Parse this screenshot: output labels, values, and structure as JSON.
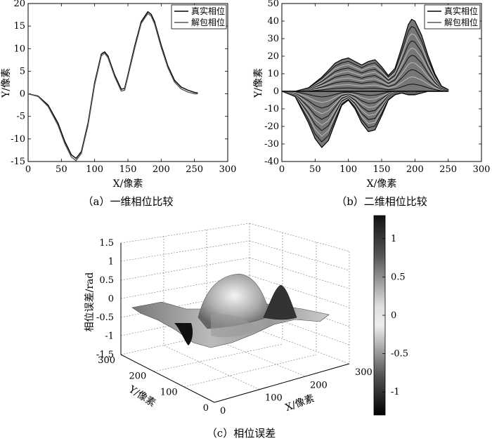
{
  "chart_data": [
    {
      "id": "a",
      "type": "line",
      "caption": "（a）一维相位比较",
      "xlabel": "X/像素",
      "ylabel": "Y/像素",
      "xlim": [
        0,
        300
      ],
      "ylim": [
        -15,
        20
      ],
      "xticks": [
        0,
        50,
        100,
        150,
        200,
        250,
        300
      ],
      "yticks": [
        -15,
        -10,
        -5,
        0,
        5,
        10,
        15,
        20
      ],
      "legend": {
        "placement": "top-right"
      },
      "series": [
        {
          "name": "真实相位",
          "color": "#000000",
          "x": [
            0,
            15,
            30,
            45,
            55,
            65,
            72,
            80,
            90,
            100,
            110,
            115,
            120,
            130,
            140,
            145,
            150,
            160,
            170,
            180,
            185,
            190,
            200,
            210,
            220,
            230,
            240,
            250,
            255
          ],
          "y": [
            0,
            -0.5,
            -2.5,
            -6.5,
            -10.5,
            -13.5,
            -14.3,
            -12.8,
            -6.5,
            2.5,
            8.8,
            9.3,
            8.4,
            4.2,
            1.0,
            1.2,
            4.2,
            10.5,
            16.0,
            18.2,
            17.6,
            16.0,
            10.8,
            6.2,
            3.0,
            1.5,
            0.8,
            0.3,
            0.2
          ]
        },
        {
          "name": "解包相位",
          "color": "#555555",
          "x": [
            0,
            15,
            30,
            45,
            55,
            65,
            72,
            80,
            90,
            100,
            110,
            115,
            120,
            130,
            140,
            145,
            150,
            160,
            170,
            180,
            185,
            190,
            200,
            210,
            220,
            230,
            240,
            250,
            255
          ],
          "y": [
            0,
            -0.6,
            -2.8,
            -7.0,
            -11.0,
            -14.0,
            -14.8,
            -13.2,
            -7.0,
            2.0,
            8.4,
            9.0,
            8.0,
            3.8,
            0.6,
            0.8,
            3.8,
            10.0,
            15.6,
            17.8,
            17.2,
            15.5,
            10.3,
            5.8,
            2.6,
            1.1,
            0.4,
            0.0,
            0.0
          ]
        }
      ]
    },
    {
      "id": "b",
      "type": "line",
      "caption": "（b）二维相位比较",
      "xlabel": "X/像素",
      "ylabel": "Y/像素",
      "xlim": [
        0,
        300
      ],
      "ylim": [
        -40,
        50
      ],
      "xticks": [
        0,
        50,
        100,
        150,
        200,
        250,
        300
      ],
      "yticks": [
        -40,
        -30,
        -20,
        -10,
        0,
        10,
        20,
        30,
        40,
        50
      ],
      "legend": {
        "placement": "top-right"
      },
      "series": [
        {
          "name": "真实相位",
          "color": "#000000"
        },
        {
          "name": "解包相位",
          "color": "#555555"
        }
      ],
      "envelope": {
        "x": [
          0,
          20,
          40,
          50,
          60,
          70,
          80,
          90,
          100,
          110,
          120,
          130,
          140,
          150,
          160,
          170,
          180,
          190,
          195,
          200,
          210,
          220,
          230,
          240,
          250
        ],
        "upper": [
          0,
          0,
          2,
          5,
          8,
          12,
          16,
          18,
          19,
          17,
          15,
          17,
          18,
          14,
          9,
          13,
          25,
          38,
          41,
          40,
          32,
          20,
          10,
          3,
          1
        ],
        "lower": [
          0,
          -3,
          -18,
          -27,
          -32,
          -28,
          -18,
          -8,
          -5,
          -10,
          -18,
          -23,
          -22,
          -14,
          -5,
          -2,
          -1,
          -2,
          -2,
          -2,
          -1,
          0,
          0,
          0,
          0
        ]
      }
    },
    {
      "id": "c",
      "type": "surface",
      "caption": "（c）相位误差",
      "xlabel": "X/像素",
      "ylabel": "Y/像素",
      "zlabel": "相位误差/rad",
      "xlim": [
        0,
        300
      ],
      "ylim": [
        0,
        300
      ],
      "zlim": [
        -1.5,
        1.5
      ],
      "xticks": [
        0,
        100,
        200,
        300
      ],
      "yticks": [
        0,
        100,
        200,
        300
      ],
      "zticks": [
        -1.5,
        -1,
        -0.5,
        0,
        0.5,
        1,
        1.5
      ],
      "grid": true,
      "colorbar": {
        "placement": "right",
        "range": [
          -1.3,
          1.3
        ],
        "ticks": [
          -1,
          -0.5,
          0,
          0.5,
          1
        ],
        "colormap": "gray"
      }
    }
  ]
}
